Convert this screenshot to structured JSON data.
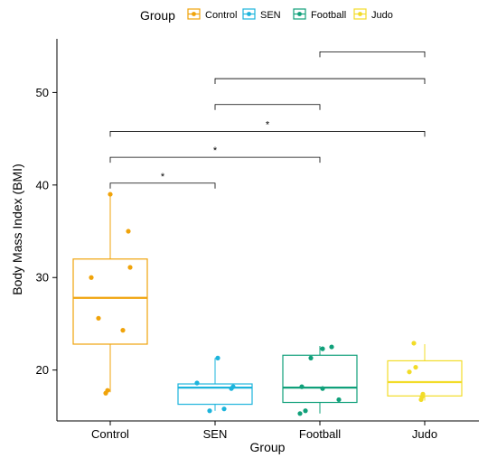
{
  "chart_data": {
    "type": "box",
    "xlabel": "Group",
    "ylabel": "Body Mass Index (BMI)",
    "ylim": [
      14.5,
      55.8
    ],
    "yticks": [
      20,
      30,
      40,
      50
    ],
    "legend": {
      "title": "Group",
      "position": "top"
    },
    "categories": [
      "Control",
      "SEN",
      "Football",
      "Judo"
    ],
    "colors": [
      "#F0A30A",
      "#1CB4DC",
      "#10A07A",
      "#F2DC28"
    ],
    "boxes": [
      {
        "name": "Control",
        "q1": 22.8,
        "median": 27.8,
        "q3": 32.0,
        "whisker_low": 17.6,
        "whisker_high": 39.0,
        "points": [
          17.5,
          17.8,
          24.3,
          25.6,
          30.0,
          31.1,
          35.0,
          39.0
        ]
      },
      {
        "name": "SEN",
        "q1": 16.3,
        "median": 18.1,
        "q3": 18.5,
        "whisker_low": 15.6,
        "whisker_high": 21.3,
        "points": [
          15.6,
          15.8,
          18.0,
          18.2,
          18.6,
          21.3
        ]
      },
      {
        "name": "Football",
        "q1": 16.5,
        "median": 18.1,
        "q3": 21.6,
        "whisker_low": 15.3,
        "whisker_high": 22.6,
        "points": [
          15.3,
          15.6,
          16.8,
          18.0,
          18.2,
          21.3,
          22.3,
          22.5
        ]
      },
      {
        "name": "Judo",
        "q1": 17.2,
        "median": 18.7,
        "q3": 21.0,
        "whisker_low": 16.7,
        "whisker_high": 22.8,
        "points": [
          16.8,
          17.1,
          17.4,
          19.8,
          20.3,
          22.9
        ]
      }
    ],
    "comparisons": [
      {
        "from": "Control",
        "to": "SEN",
        "y": 40.2,
        "label": "*"
      },
      {
        "from": "Control",
        "to": "Football",
        "y": 43.0,
        "label": "*"
      },
      {
        "from": "Control",
        "to": "Judo",
        "y": 45.8,
        "label": "*"
      },
      {
        "from": "SEN",
        "to": "Football",
        "y": 48.7,
        "label": ""
      },
      {
        "from": "SEN",
        "to": "Judo",
        "y": 51.5,
        "label": ""
      },
      {
        "from": "Football",
        "to": "Judo",
        "y": 54.4,
        "label": ""
      }
    ]
  }
}
